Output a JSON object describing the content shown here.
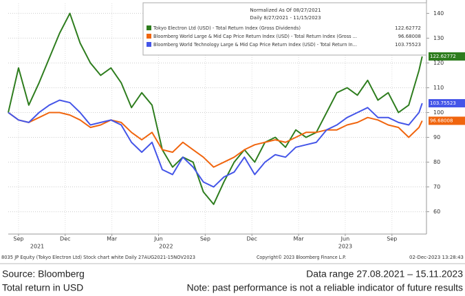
{
  "chart_data": {
    "type": "line",
    "legend_title": "Normalized As Of 08/27/2021",
    "legend_subtitle": "Daily 8/27/2021 - 11/15/2023",
    "x": [
      2021.655,
      2021.71,
      2021.765,
      2021.82,
      2021.875,
      2021.93,
      2021.985,
      2022.04,
      2022.095,
      2022.15,
      2022.205,
      2022.26,
      2022.315,
      2022.37,
      2022.425,
      2022.48,
      2022.535,
      2022.59,
      2022.645,
      2022.7,
      2022.755,
      2022.81,
      2022.865,
      2022.92,
      2022.975,
      2023.03,
      2023.085,
      2023.14,
      2023.195,
      2023.25,
      2023.305,
      2023.36,
      2023.415,
      2023.47,
      2023.525,
      2023.58,
      2023.635,
      2023.69,
      2023.745,
      2023.8,
      2023.855,
      2023.872
    ],
    "series": [
      {
        "name": "Tokyo Electron Ltd (USD) - Total Return Index (Gross Dividends)",
        "color": "#2e7d1e",
        "values": [
          100,
          118,
          103,
          112,
          122,
          132,
          140,
          128,
          120,
          115,
          118,
          112,
          102,
          108,
          103,
          85,
          78,
          82,
          80,
          68,
          63,
          72,
          80,
          85,
          80,
          88,
          90,
          86,
          93,
          90,
          92,
          100,
          108,
          110,
          107,
          113,
          105,
          108,
          100,
          103,
          117,
          122.62772
        ]
      },
      {
        "name": "Bloomberg World Large & Mid Cap Price Return Index (USD) - Total Return Index (Gross ...",
        "color": "#f0650e",
        "values": [
          100,
          97,
          96,
          98,
          100,
          100,
          99,
          97,
          94,
          95,
          97,
          96,
          92,
          89,
          92,
          85,
          84,
          88,
          85,
          82,
          78,
          80,
          82,
          85,
          87,
          88,
          89,
          88,
          90,
          92,
          92,
          93,
          93,
          95,
          96,
          98,
          97,
          95,
          94,
          90,
          94,
          96.68008
        ]
      },
      {
        "name": "Bloomberg World Technology Large & Mid Cap Price Return Index (USD) - Total Return In...",
        "color": "#4455e8",
        "values": [
          100,
          97,
          96,
          100,
          103,
          105,
          104,
          100,
          95,
          96,
          97,
          95,
          88,
          84,
          88,
          77,
          75,
          82,
          78,
          72,
          70,
          74,
          76,
          82,
          75,
          80,
          83,
          82,
          86,
          87,
          88,
          93,
          95,
          98,
          100,
          102,
          98,
          98,
          96,
          95,
          100,
          103.75523
        ]
      }
    ],
    "xlim": [
      2021.655,
      2023.895
    ],
    "xticks": [
      {
        "value": 2021.71,
        "label": "Sep"
      },
      {
        "value": 2021.96,
        "label": "Dec"
      },
      {
        "value": 2022.21,
        "label": "Mar"
      },
      {
        "value": 2022.46,
        "label": "Jun"
      },
      {
        "value": 2022.71,
        "label": "Sep"
      },
      {
        "value": 2022.96,
        "label": "Dec"
      },
      {
        "value": 2023.21,
        "label": "Mar"
      },
      {
        "value": 2023.46,
        "label": "Jun"
      },
      {
        "value": 2023.71,
        "label": "Sep"
      }
    ],
    "xyears": [
      {
        "value": 2021.81,
        "label": "2021"
      },
      {
        "value": 2022.5,
        "label": "2022"
      },
      {
        "value": 2023.46,
        "label": "2023"
      }
    ],
    "ylim": [
      51,
      144
    ],
    "yticks": [
      60,
      70,
      80,
      90,
      100,
      110,
      120,
      130,
      140
    ],
    "grid": true,
    "footer_left": "8035 JP Equity (Tokyo Electron Ltd) Stock chart white  Daily 27AUG2021-15NOV2023",
    "footer_center": "Copyright© 2023 Bloomberg Finance L.P.",
    "footer_right": "02-Dec-2023 13:28:43",
    "source": "Source: Bloomberg",
    "data_range": "Data range 27.08.2021 – 15.11.2023",
    "unit_note": "Total return in USD",
    "disclaimer": "Note: past performance is not a reliable indicator of future results"
  }
}
